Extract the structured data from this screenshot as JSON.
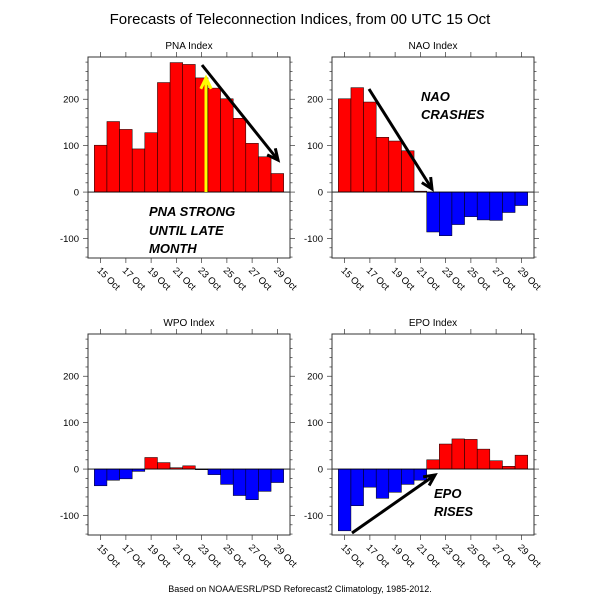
{
  "title": "Forecasts of Teleconnection Indices, from 00 UTC 15 Oct",
  "footer": "Based on NOAA/ESRL/PSD Reforecast2 Climatology, 1985-2012.",
  "colors": {
    "positive": "#ff0000",
    "negative": "#0000ff",
    "highlight_arrow": "#ffff00",
    "arrow": "#000000"
  },
  "chart_data": [
    {
      "type": "bar",
      "title": "PNA Index",
      "x": [
        15,
        16,
        17,
        18,
        19,
        20,
        21,
        22,
        23,
        24,
        25,
        26,
        27,
        28,
        29
      ],
      "values": [
        101,
        152,
        135,
        93,
        128,
        236,
        279,
        275,
        246,
        224,
        201,
        159,
        105,
        76,
        40
      ],
      "xticks": [
        15,
        17,
        19,
        21,
        23,
        25,
        27,
        29
      ],
      "xtick_labels": [
        "15 Oct",
        "17 Oct",
        "19 Oct",
        "21 Oct",
        "23 Oct",
        "25 Oct",
        "27 Oct",
        "29 Oct"
      ],
      "yticks": [
        -100,
        0,
        100,
        200
      ],
      "ylim": [
        -142,
        291
      ],
      "xlim": [
        14,
        30
      ],
      "annotation": [
        "PNA STRONG",
        "UNTIL LATE",
        "MONTH"
      ]
    },
    {
      "type": "bar",
      "title": "NAO Index",
      "x": [
        15,
        16,
        17,
        18,
        19,
        20,
        21,
        22,
        23,
        24,
        25,
        26,
        27,
        28,
        29
      ],
      "values": [
        201,
        225,
        194,
        118,
        110,
        89,
        2,
        -86,
        -94,
        -70,
        -53,
        -60,
        -61,
        -44,
        -29
      ],
      "xticks": [
        15,
        17,
        19,
        21,
        23,
        25,
        27,
        29
      ],
      "xtick_labels": [
        "15 Oct",
        "17 Oct",
        "19 Oct",
        "21 Oct",
        "23 Oct",
        "25 Oct",
        "27 Oct",
        "29 Oct"
      ],
      "yticks": [
        -100,
        0,
        100,
        200
      ],
      "ylim": [
        -142,
        291
      ],
      "xlim": [
        14,
        30
      ],
      "annotation": [
        "NAO",
        "CRASHES"
      ]
    },
    {
      "type": "bar",
      "title": "WPO Index",
      "x": [
        15,
        16,
        17,
        18,
        19,
        20,
        21,
        22,
        23,
        24,
        25,
        26,
        27,
        28,
        29
      ],
      "values": [
        -36,
        -24,
        -21,
        -5,
        25,
        14,
        3,
        7,
        -1,
        -12,
        -33,
        -57,
        -66,
        -48,
        -29
      ],
      "xticks": [
        15,
        17,
        19,
        21,
        23,
        25,
        27,
        29
      ],
      "xtick_labels": [
        "15 Oct",
        "17 Oct",
        "19 Oct",
        "21 Oct",
        "23 Oct",
        "25 Oct",
        "27 Oct",
        "29 Oct"
      ],
      "yticks": [
        -100,
        0,
        100,
        200
      ],
      "ylim": [
        -142,
        291
      ],
      "xlim": [
        14,
        30
      ],
      "annotation": []
    },
    {
      "type": "bar",
      "title": "EPO Index",
      "x": [
        15,
        16,
        17,
        18,
        19,
        20,
        21,
        22,
        23,
        24,
        25,
        26,
        27,
        28,
        29
      ],
      "values": [
        -133,
        -79,
        -39,
        -63,
        -50,
        -33,
        -24,
        20,
        54,
        65,
        64,
        43,
        18,
        6,
        30
      ],
      "xticks": [
        15,
        17,
        19,
        21,
        23,
        25,
        27,
        29
      ],
      "xtick_labels": [
        "15 Oct",
        "17 Oct",
        "19 Oct",
        "21 Oct",
        "23 Oct",
        "25 Oct",
        "27 Oct",
        "29 Oct"
      ],
      "yticks": [
        -100,
        0,
        100,
        200
      ],
      "ylim": [
        -142,
        291
      ],
      "xlim": [
        14,
        30
      ],
      "annotation": [
        "EPO",
        "RISES"
      ]
    }
  ]
}
